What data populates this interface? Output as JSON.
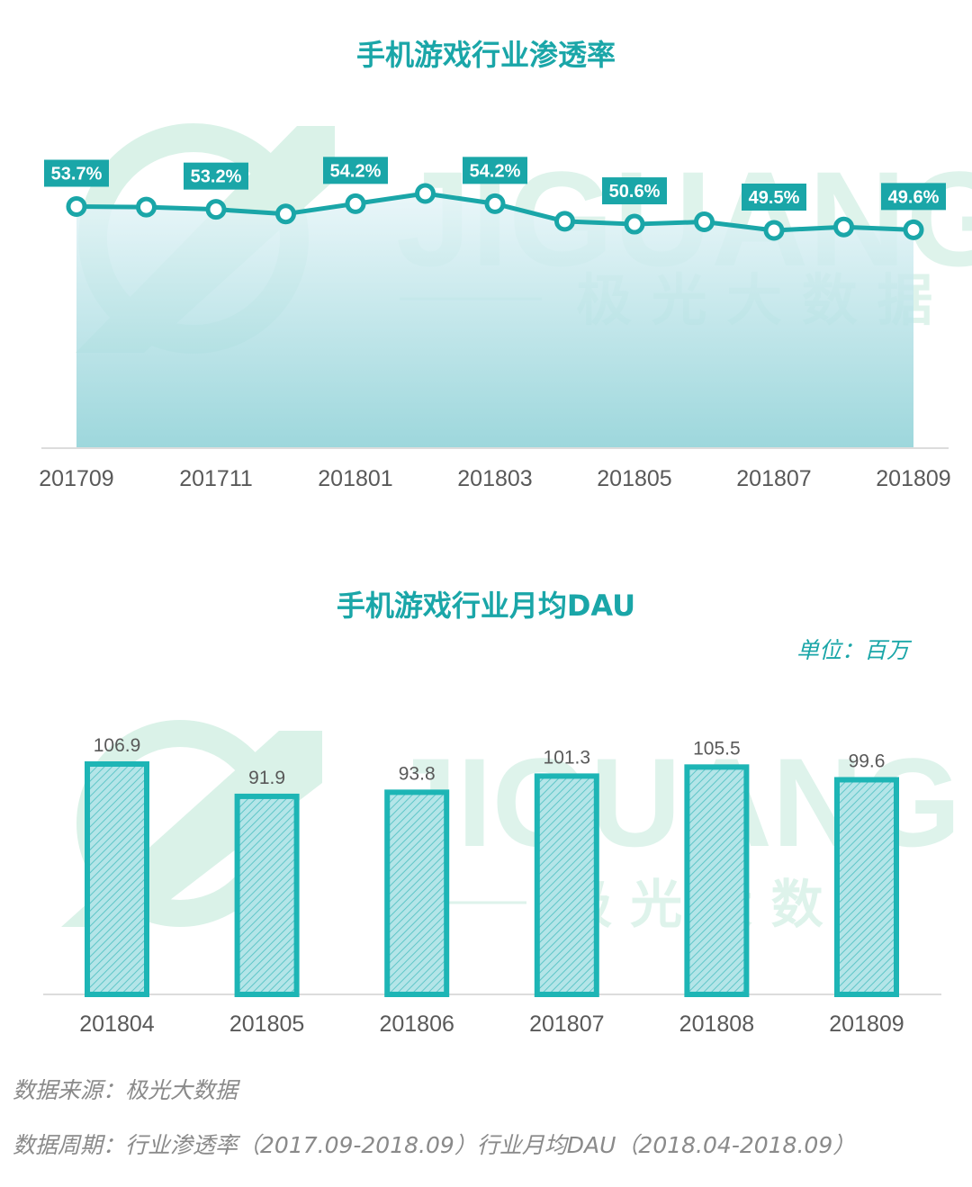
{
  "watermark": {
    "brand": "JIGUANG",
    "brand_cn": "极 光 大 数 据"
  },
  "chart_data": [
    {
      "type": "line",
      "title": "手机游戏行业渗透率",
      "x": [
        "201709",
        "201710",
        "201711",
        "201712",
        "201801",
        "201802",
        "201803",
        "201804",
        "201805",
        "201806",
        "201807",
        "201808",
        "201809"
      ],
      "tick_labels": [
        "201709",
        "201711",
        "201801",
        "201803",
        "201805",
        "201807",
        "201809"
      ],
      "values": [
        53.7,
        53.6,
        53.2,
        52.4,
        54.2,
        56.0,
        54.2,
        51.1,
        50.6,
        51.0,
        49.5,
        50.1,
        49.6
      ],
      "data_labels": [
        {
          "index": 0,
          "text": "53.7%"
        },
        {
          "index": 2,
          "text": "53.2%"
        },
        {
          "index": 4,
          "text": "54.2%"
        },
        {
          "index": 6,
          "text": "54.2%"
        },
        {
          "index": 8,
          "text": "50.6%"
        },
        {
          "index": 10,
          "text": "49.5%"
        },
        {
          "index": 12,
          "text": "49.6%"
        }
      ],
      "ylim": [
        0,
        70
      ],
      "grid": false,
      "colors": {
        "line": "#1aa6a8",
        "area_top": "#e6f5f8",
        "area_bottom": "#8cd0d6",
        "label_bg": "#1aa6a8"
      }
    },
    {
      "type": "bar",
      "title": "手机游戏行业月均DAU",
      "unit": "单位：百万",
      "categories": [
        "201804",
        "201805",
        "201806",
        "201807",
        "201808",
        "201809"
      ],
      "values": [
        106.9,
        91.9,
        93.8,
        101.3,
        105.5,
        99.6
      ],
      "ylim": [
        0,
        110
      ],
      "grid": false,
      "colors": {
        "bar_border": "#1db5b5",
        "bar_fill": "#b4e5e8",
        "hatch": "#5fc6c8"
      }
    }
  ],
  "footer": {
    "source": "数据来源：极光大数据",
    "period": "数据周期：行业渗透率（2017.09-2018.09）行业月均DAU（2018.04-2018.09）"
  }
}
